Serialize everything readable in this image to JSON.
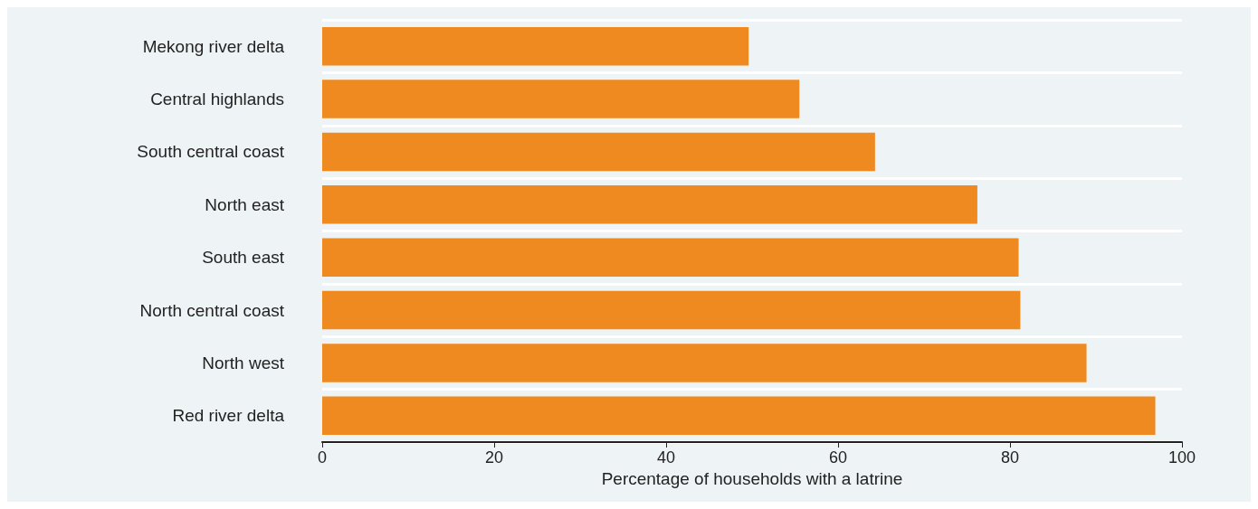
{
  "chart_data": {
    "type": "bar",
    "orientation": "horizontal",
    "xlabel": "Percentage of households with a latrine",
    "categories": [
      "Mekong river delta",
      "Central highlands",
      "South central coast",
      "North east",
      "South east",
      "North central coast",
      "North west",
      "Red river delta"
    ],
    "values": [
      49.6,
      55.5,
      64.3,
      76.2,
      81.0,
      81.2,
      88.9,
      96.9
    ],
    "color": "#ee8a1f",
    "xlim": [
      0,
      100
    ],
    "xticks": [
      0,
      20,
      40,
      60,
      80,
      100
    ],
    "grid": "y"
  }
}
